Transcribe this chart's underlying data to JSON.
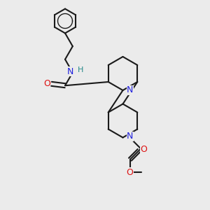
{
  "bg": "#ebebeb",
  "bc": "#1a1a1a",
  "nc": "#2020dd",
  "oc": "#dd1010",
  "hc": "#228888",
  "lw": 1.5,
  "fs": 9,
  "figsize": [
    3.0,
    3.0
  ],
  "dpi": 100,
  "xlim": [
    0,
    10
  ],
  "ylim": [
    0,
    10
  ]
}
